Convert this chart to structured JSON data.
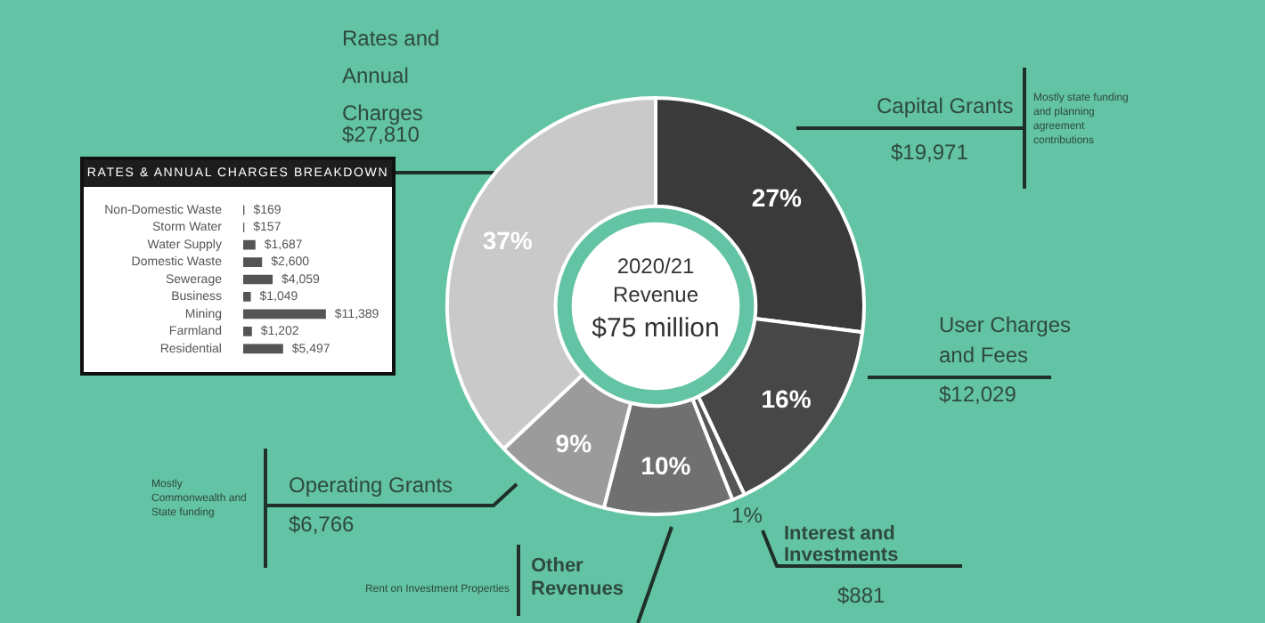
{
  "chart_data": [
    {
      "type": "donut",
      "title": "2020/21 Revenue",
      "subtitle": "$75 million",
      "categories": [
        "Capital Grants",
        "User Charges and Fees",
        "Interest and Investments",
        "Other Revenues",
        "Operating Grants",
        "Rates and Annual Charges"
      ],
      "values": [
        27,
        16,
        1,
        10,
        9,
        37
      ],
      "colors": [
        "#3a3a3a",
        "#474747",
        "#555555",
        "#707070",
        "#9b9b9b",
        "#c9c9c9"
      ],
      "value_labels": [
        "27%",
        "16%",
        "1%",
        "10%",
        "9%",
        "37%"
      ],
      "annotations": [
        "$19,971",
        "$12,029",
        "$881",
        "$6,766",
        "$27,810",
        "Mostly state funding and planning agreement contributions",
        "Mostly Commonwealth and State funding",
        "Rent on Investment Properties"
      ],
      "legend": false
    },
    {
      "type": "bar",
      "orientation": "horizontal",
      "title": "RATES & ANNUAL CHARGES BREAKDOWN",
      "categories": [
        "Non-Domestic Waste",
        "Storm Water",
        "Water Supply",
        "Domestic Waste",
        "Sewerage",
        "Business",
        "Mining",
        "Farmland",
        "Residential"
      ],
      "values": [
        169,
        157,
        1687,
        2600,
        4059,
        1049,
        11389,
        1202,
        5497
      ],
      "color": "#555555",
      "value_labels": [
        "$169",
        "$157",
        "$1,687",
        "$2,600",
        "$4,059",
        "$1,049",
        "$11,389",
        "$1,202",
        "$5,497"
      ],
      "legend": false
    }
  ]
}
